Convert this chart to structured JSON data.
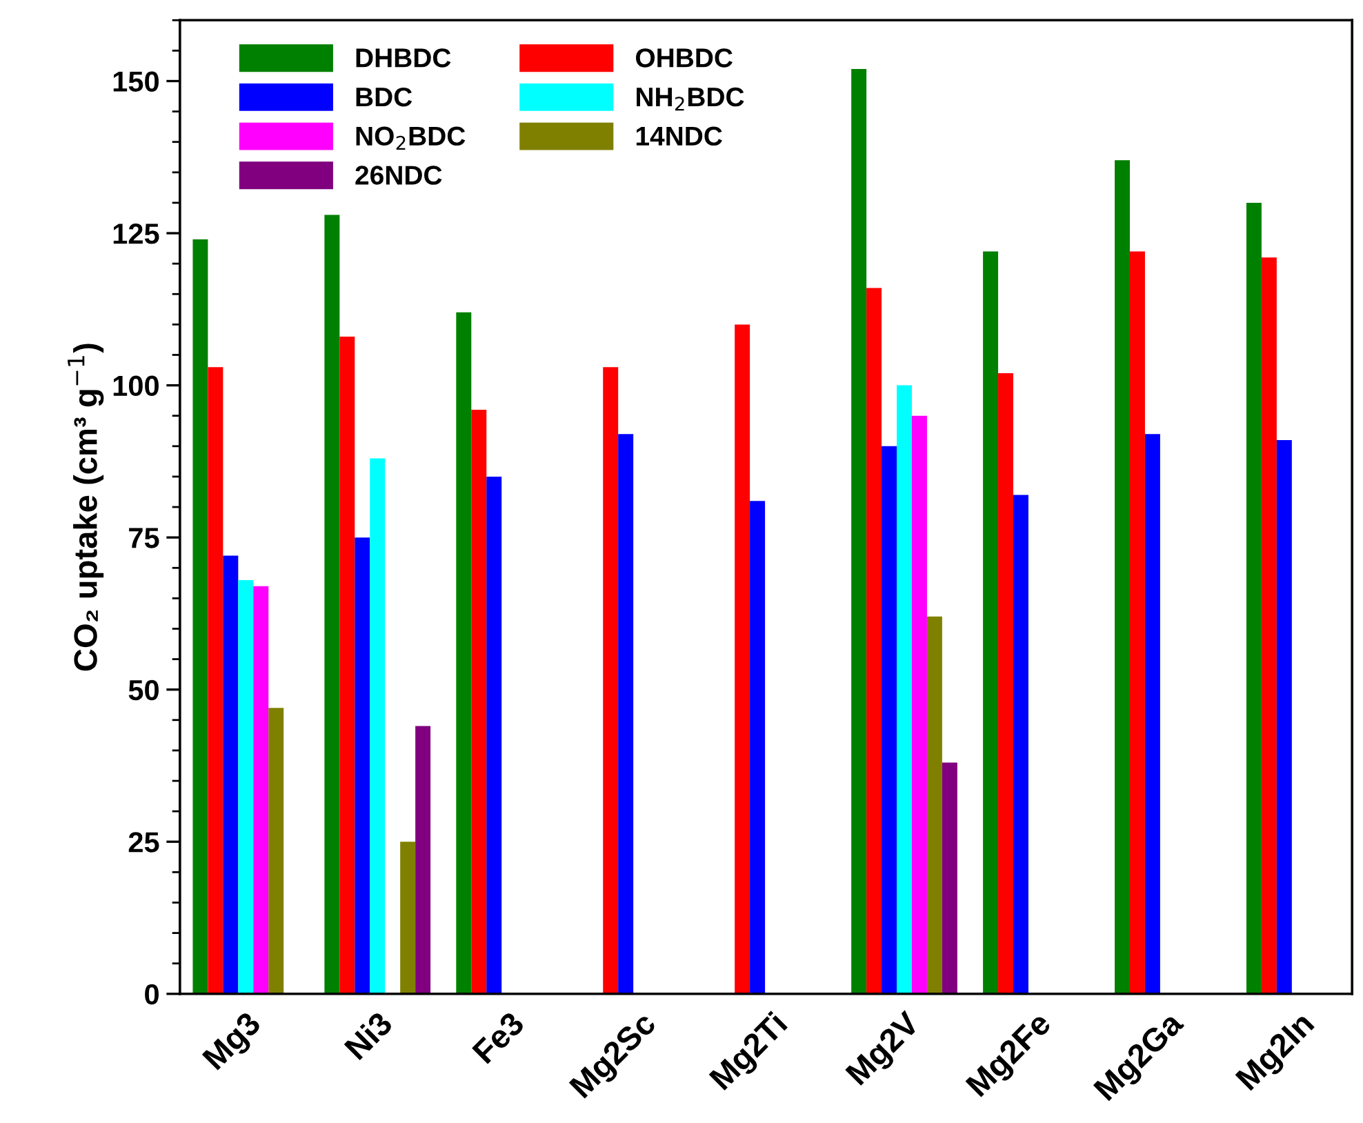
{
  "chart_data": {
    "type": "bar",
    "ylabel": "CO₂ uptake (cm³ g$^{−1}$)",
    "categories": [
      "Mg3",
      "Ni3",
      "Fe3",
      "Mg2Sc",
      "Mg2Ti",
      "Mg2V",
      "Mg2Fe",
      "Mg2Ga",
      "Mg2In"
    ],
    "series": [
      {
        "name": "DHBDC",
        "color": "#008000",
        "values": [
          124,
          128,
          112,
          null,
          null,
          152,
          122,
          137,
          130
        ]
      },
      {
        "name": "OHBDC",
        "color": "#ff0000",
        "values": [
          103,
          108,
          96,
          103,
          110,
          116,
          102,
          122,
          121
        ]
      },
      {
        "name": "BDC",
        "color": "#0000ff",
        "values": [
          72,
          75,
          85,
          92,
          81,
          90,
          82,
          92,
          91
        ]
      },
      {
        "name": "NH$_{2}$BDC",
        "color": "#00ffff",
        "values": [
          68,
          88,
          null,
          null,
          null,
          100,
          null,
          null,
          null
        ]
      },
      {
        "name": "NO$_{2}$BDC",
        "color": "#ff00ff",
        "values": [
          67,
          null,
          null,
          null,
          null,
          95,
          null,
          null,
          null
        ]
      },
      {
        "name": "14NDC",
        "color": "#808000",
        "values": [
          47,
          25,
          null,
          null,
          null,
          62,
          null,
          null,
          null
        ]
      },
      {
        "name": "26NDC",
        "color": "#800080",
        "values": [
          null,
          44,
          null,
          null,
          null,
          38,
          null,
          null,
          null
        ]
      }
    ],
    "ylim": [
      0,
      160
    ],
    "yticks": [
      0,
      25,
      50,
      75,
      100,
      125,
      150
    ],
    "grid": false,
    "legend": "top left"
  }
}
